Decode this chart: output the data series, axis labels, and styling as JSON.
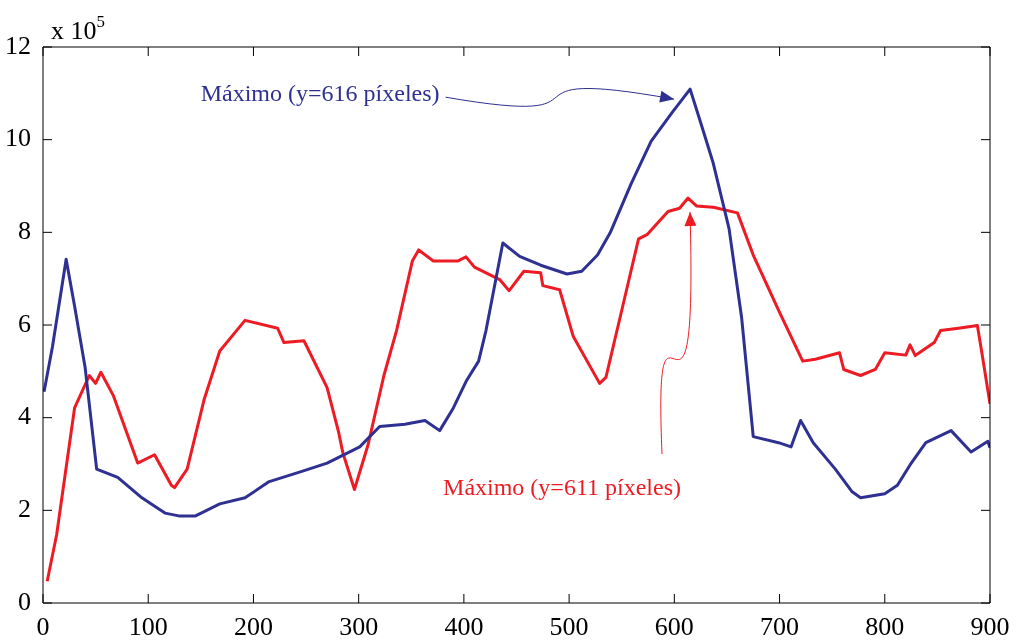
{
  "chart_data": {
    "type": "line",
    "xlim": [
      0,
      900
    ],
    "ylim": [
      0,
      12
    ],
    "xticks": [
      0,
      100,
      200,
      300,
      400,
      500,
      600,
      700,
      800,
      900
    ],
    "yticks": [
      0,
      2,
      4,
      6,
      8,
      10,
      12
    ],
    "grid": false,
    "legend": false,
    "marker": "none",
    "line_style": "solid",
    "annotations": [
      "x 10$^{5}$",
      "Máximo (y=616 píxeles)",
      "Máximo (y=611 píxeles)"
    ],
    "series": [
      {
        "color": "#2e3192",
        "x": [
          1,
          9,
          22,
          30,
          40,
          51,
          71,
          94,
          116,
          129,
          145,
          168,
          192,
          215,
          246,
          270,
          301,
          320,
          344,
          363,
          377,
          390,
          402,
          414,
          421,
          437,
          453,
          473,
          498,
          512,
          527,
          539,
          559,
          578,
          598,
          615,
          625,
          637,
          652,
          664,
          675,
          699,
          711,
          720,
          732,
          753,
          769,
          777,
          800,
          812,
          824,
          839,
          863,
          882,
          898,
          900
        ],
        "values": [
          4.56,
          5.53,
          7.42,
          6.41,
          5.09,
          2.89,
          2.71,
          2.27,
          1.94,
          1.88,
          1.88,
          2.14,
          2.27,
          2.62,
          2.84,
          3.02,
          3.37,
          3.81,
          3.86,
          3.94,
          3.72,
          4.21,
          4.78,
          5.22,
          5.88,
          7.77,
          7.48,
          7.29,
          7.1,
          7.16,
          7.51,
          7.99,
          9.05,
          9.97,
          10.59,
          11.09,
          10.37,
          9.49,
          8.08,
          6.15,
          3.59,
          3.46,
          3.37,
          3.94,
          3.46,
          2.89,
          2.4,
          2.27,
          2.36,
          2.54,
          2.98,
          3.46,
          3.72,
          3.26,
          3.49,
          3.35
        ]
      },
      {
        "color": "#ed1c24",
        "x": [
          4,
          13,
          30,
          44,
          50,
          55,
          67,
          90,
          106,
          122,
          125,
          137,
          153,
          168,
          192,
          223,
          229,
          248,
          270,
          281,
          285,
          296,
          309,
          324,
          336,
          351,
          357,
          371,
          394,
          402,
          410,
          434,
          443,
          457,
          473,
          475,
          491,
          504,
          529,
          535,
          551,
          566,
          574,
          594,
          605,
          613,
          621,
          637,
          660,
          675,
          699,
          722,
          734,
          757,
          761,
          777,
          791,
          800,
          820,
          824,
          829,
          847,
          853,
          870,
          888,
          892,
          900
        ],
        "values": [
          0.47,
          1.48,
          4.21,
          4.91,
          4.74,
          4.98,
          4.47,
          3.02,
          3.2,
          2.54,
          2.49,
          2.89,
          4.38,
          5.44,
          6.1,
          5.93,
          5.62,
          5.66,
          4.65,
          3.68,
          3.24,
          2.45,
          3.42,
          4.91,
          5.88,
          7.38,
          7.62,
          7.38,
          7.38,
          7.47,
          7.25,
          6.98,
          6.74,
          7.16,
          7.13,
          6.85,
          6.76,
          5.75,
          4.74,
          4.87,
          6.41,
          7.86,
          7.95,
          8.45,
          8.52,
          8.74,
          8.57,
          8.54,
          8.42,
          7.51,
          6.32,
          5.22,
          5.26,
          5.4,
          5.04,
          4.91,
          5.04,
          5.4,
          5.35,
          5.57,
          5.34,
          5.62,
          5.88,
          5.93,
          5.99,
          5.44,
          4.3
        ]
      }
    ]
  }
}
